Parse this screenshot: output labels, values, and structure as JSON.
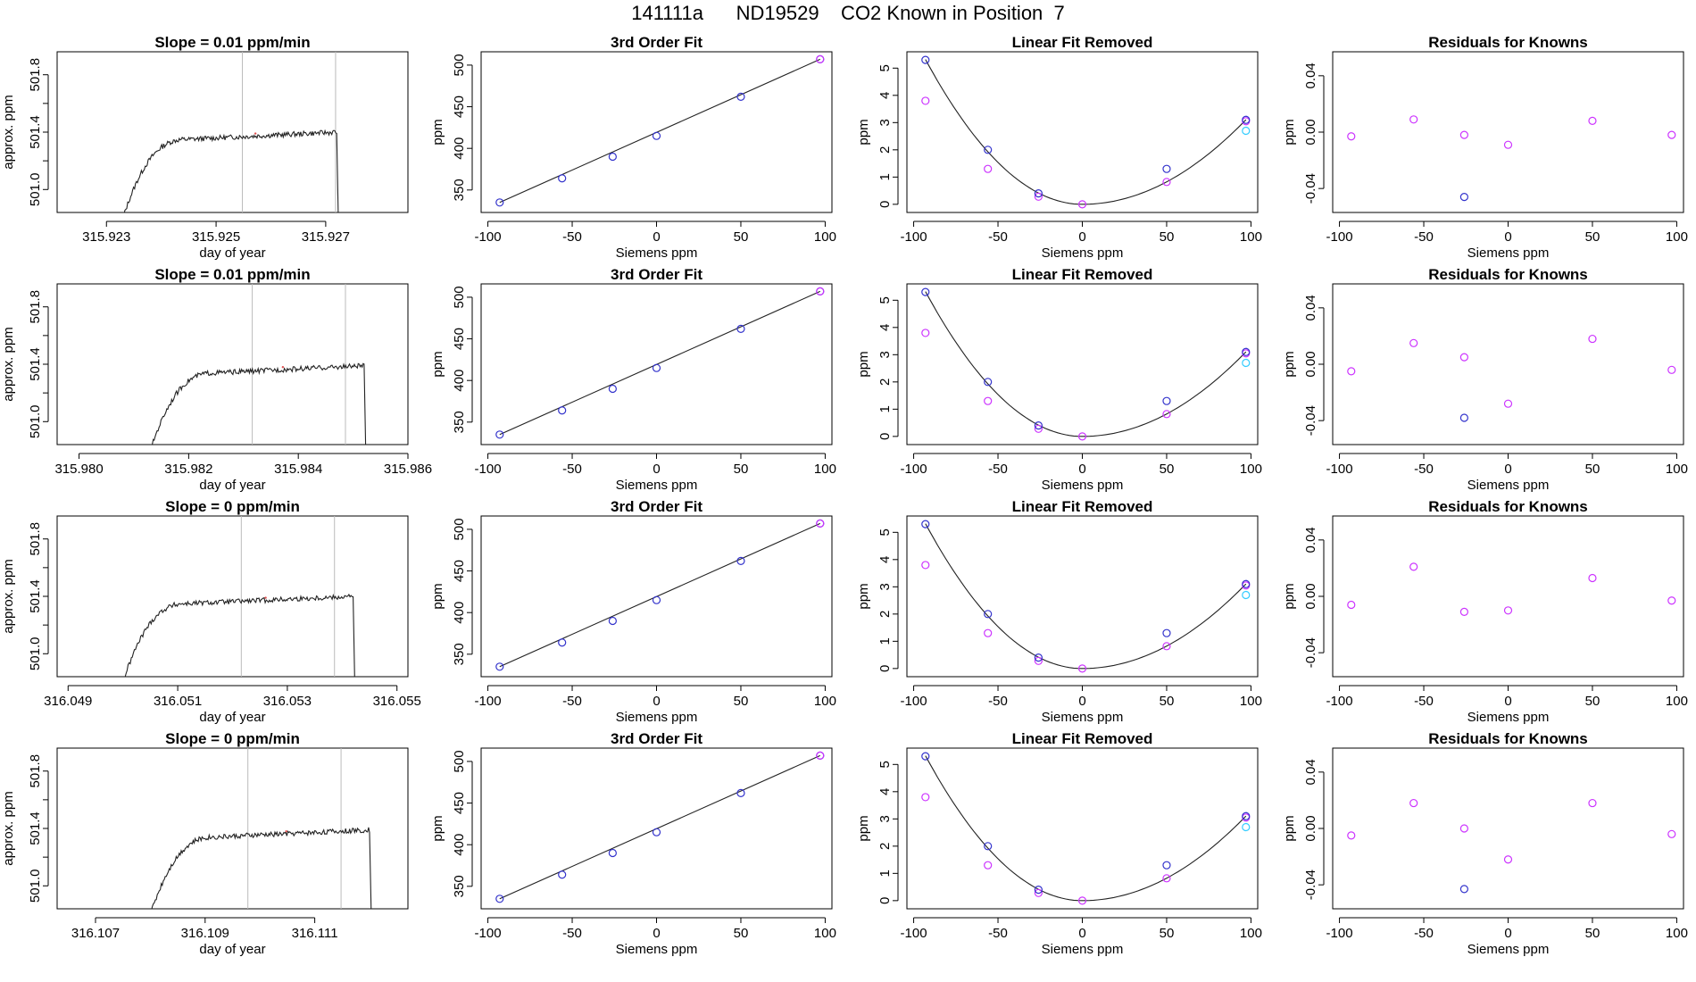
{
  "figure": {
    "title": "141111a      ND19529    CO2 Known in Position  7"
  },
  "colors": {
    "ink": "#000000",
    "magenta": "#cc33ff",
    "blue": "#3333cc",
    "cyan": "#33ccff",
    "guide": "#bbbbbb"
  },
  "chart_data": [
    {
      "type": "line",
      "row": 0,
      "panel": "timeseries",
      "title": "Slope =  0.01  ppm/min",
      "xlabel": "day of year",
      "ylabel": "approx. ppm",
      "xlim": [
        315.9221,
        315.9285
      ],
      "ylim": [
        500.84,
        501.96
      ],
      "xticks": [
        "315.923",
        "315.925",
        "315.927"
      ],
      "yticks": [
        "501.0",
        "501.4",
        "501.8"
      ],
      "trace": {
        "start": 315.9233,
        "rise_end": 315.9245,
        "end": 315.9272,
        "baseline": 500.8,
        "plateau": 501.37
      },
      "vlines": [
        315.92548,
        315.92718
      ]
    },
    {
      "type": "scatter",
      "row": 0,
      "panel": "fit",
      "title": "3rd Order Fit",
      "xlabel": "Siemens ppm",
      "ylabel": "ppm",
      "xlim": [
        -104,
        104
      ],
      "ylim": [
        323,
        516
      ],
      "xticks": [
        "-100",
        "-50",
        "0",
        "50",
        "100"
      ],
      "yticks": [
        "350",
        "400",
        "450",
        "500"
      ],
      "points": [
        [
          -93,
          335
        ],
        [
          -56,
          364
        ],
        [
          -26,
          390
        ],
        [
          0,
          415
        ],
        [
          50,
          462
        ],
        [
          97,
          507
        ]
      ]
    },
    {
      "type": "scatter",
      "row": 0,
      "panel": "linear-removed",
      "title": "Linear Fit Removed",
      "xlabel": "Siemens ppm",
      "ylabel": "ppm",
      "xlim": [
        -104,
        104
      ],
      "ylim": [
        -0.3,
        5.6
      ],
      "xticks": [
        "-100",
        "-50",
        "0",
        "50",
        "100"
      ],
      "yticks": [
        "0",
        "1",
        "2",
        "3",
        "4",
        "5"
      ],
      "points_blue": [
        [
          -93,
          5.3
        ],
        [
          -56,
          2.0
        ],
        [
          -26,
          0.4
        ],
        [
          50,
          1.3
        ],
        [
          97,
          3.1
        ]
      ],
      "points_magenta": [
        [
          -93,
          3.8
        ],
        [
          -56,
          1.3
        ],
        [
          -26,
          0.28
        ],
        [
          0,
          0.0
        ],
        [
          50,
          0.82
        ],
        [
          97,
          3.05
        ]
      ],
      "points_cyan": [
        [
          97,
          2.7
        ]
      ]
    },
    {
      "type": "scatter",
      "row": 0,
      "panel": "residuals",
      "title": "Residuals for Knowns",
      "xlabel": "Siemens ppm",
      "ylabel": "ppm",
      "xlim": [
        -104,
        104
      ],
      "ylim": [
        -0.057,
        0.057
      ],
      "xticks": [
        "-100",
        "-50",
        "0",
        "50",
        "100"
      ],
      "yticks": [
        "-0.04",
        "0.00",
        "0.04"
      ],
      "points_magenta": [
        [
          -93,
          -0.003
        ],
        [
          -56,
          0.009
        ],
        [
          -26,
          -0.002
        ],
        [
          0,
          -0.009
        ],
        [
          50,
          0.008
        ],
        [
          97,
          -0.002
        ]
      ],
      "points_blue": [
        [
          -26,
          -0.046
        ]
      ]
    },
    {
      "type": "line",
      "row": 1,
      "panel": "timeseries",
      "title": "Slope =  0.01  ppm/min",
      "xlabel": "day of year",
      "ylabel": "approx. ppm",
      "xlim": [
        315.9796,
        315.986
      ],
      "ylim": [
        500.84,
        501.96
      ],
      "xticks": [
        "315.980",
        "315.982",
        "315.984",
        "315.986"
      ],
      "yticks": [
        "501.0",
        "501.4",
        "501.8"
      ],
      "trace": {
        "start": 315.9813,
        "rise_end": 315.9825,
        "end": 315.9852,
        "baseline": 500.8,
        "plateau": 501.36
      },
      "vlines": [
        315.98316,
        315.98486
      ]
    },
    {
      "type": "scatter",
      "row": 1,
      "panel": "fit",
      "title": "3rd Order Fit",
      "xlabel": "Siemens ppm",
      "ylabel": "ppm",
      "xlim": [
        -104,
        104
      ],
      "ylim": [
        323,
        516
      ],
      "xticks": [
        "-100",
        "-50",
        "0",
        "50",
        "100"
      ],
      "yticks": [
        "350",
        "400",
        "450",
        "500"
      ],
      "points": [
        [
          -93,
          335
        ],
        [
          -56,
          364
        ],
        [
          -26,
          390
        ],
        [
          0,
          415
        ],
        [
          50,
          462
        ],
        [
          97,
          507
        ]
      ]
    },
    {
      "type": "scatter",
      "row": 1,
      "panel": "linear-removed",
      "title": "Linear Fit Removed",
      "xlabel": "Siemens ppm",
      "ylabel": "ppm",
      "xlim": [
        -104,
        104
      ],
      "ylim": [
        -0.3,
        5.6
      ],
      "xticks": [
        "-100",
        "-50",
        "0",
        "50",
        "100"
      ],
      "yticks": [
        "0",
        "1",
        "2",
        "3",
        "4",
        "5"
      ],
      "points_blue": [
        [
          -93,
          5.3
        ],
        [
          -56,
          2.0
        ],
        [
          -26,
          0.4
        ],
        [
          50,
          1.3
        ],
        [
          97,
          3.1
        ]
      ],
      "points_magenta": [
        [
          -93,
          3.8
        ],
        [
          -56,
          1.3
        ],
        [
          -26,
          0.28
        ],
        [
          0,
          0.0
        ],
        [
          50,
          0.82
        ],
        [
          97,
          3.05
        ]
      ],
      "points_cyan": [
        [
          97,
          2.7
        ]
      ]
    },
    {
      "type": "scatter",
      "row": 1,
      "panel": "residuals",
      "title": "Residuals for Knowns",
      "xlabel": "Siemens ppm",
      "ylabel": "ppm",
      "xlim": [
        -104,
        104
      ],
      "ylim": [
        -0.057,
        0.057
      ],
      "xticks": [
        "-100",
        "-50",
        "0",
        "50",
        "100"
      ],
      "yticks": [
        "-0.04",
        "0.00",
        "0.04"
      ],
      "points_magenta": [
        [
          -93,
          -0.005
        ],
        [
          -56,
          0.015
        ],
        [
          -26,
          0.005
        ],
        [
          0,
          -0.028
        ],
        [
          50,
          0.018
        ],
        [
          97,
          -0.004
        ]
      ],
      "points_blue": [
        [
          -26,
          -0.038
        ]
      ]
    },
    {
      "type": "line",
      "row": 2,
      "panel": "timeseries",
      "title": "Slope =  0  ppm/min",
      "xlabel": "day of year",
      "ylabel": "approx. ppm",
      "xlim": [
        316.0488,
        316.0552
      ],
      "ylim": [
        500.84,
        501.96
      ],
      "xticks": [
        "316.049",
        "316.051",
        "316.053",
        "316.055"
      ],
      "yticks": [
        "501.0",
        "501.4",
        "501.8"
      ],
      "trace": {
        "start": 316.05,
        "rise_end": 316.0512,
        "end": 316.0542,
        "baseline": 500.8,
        "plateau": 501.37
      },
      "vlines": [
        316.05216,
        316.05386
      ]
    },
    {
      "type": "scatter",
      "row": 2,
      "panel": "fit",
      "title": "3rd Order Fit",
      "xlabel": "Siemens ppm",
      "ylabel": "ppm",
      "xlim": [
        -104,
        104
      ],
      "ylim": [
        323,
        516
      ],
      "xticks": [
        "-100",
        "-50",
        "0",
        "50",
        "100"
      ],
      "yticks": [
        "350",
        "400",
        "450",
        "500"
      ],
      "points": [
        [
          -93,
          335
        ],
        [
          -56,
          364
        ],
        [
          -26,
          390
        ],
        [
          0,
          415
        ],
        [
          50,
          462
        ],
        [
          97,
          507
        ]
      ]
    },
    {
      "type": "scatter",
      "row": 2,
      "panel": "linear-removed",
      "title": "Linear Fit Removed",
      "xlabel": "Siemens ppm",
      "ylabel": "ppm",
      "xlim": [
        -104,
        104
      ],
      "ylim": [
        -0.3,
        5.6
      ],
      "xticks": [
        "-100",
        "-50",
        "0",
        "50",
        "100"
      ],
      "yticks": [
        "0",
        "1",
        "2",
        "3",
        "4",
        "5"
      ],
      "points_blue": [
        [
          -93,
          5.3
        ],
        [
          -56,
          2.0
        ],
        [
          -26,
          0.4
        ],
        [
          50,
          1.3
        ],
        [
          97,
          3.1
        ]
      ],
      "points_magenta": [
        [
          -93,
          3.8
        ],
        [
          -56,
          1.3
        ],
        [
          -26,
          0.28
        ],
        [
          0,
          0.0
        ],
        [
          50,
          0.82
        ],
        [
          97,
          3.05
        ]
      ],
      "points_cyan": [
        [
          97,
          2.7
        ]
      ]
    },
    {
      "type": "scatter",
      "row": 2,
      "panel": "residuals",
      "title": "Residuals for Knowns",
      "xlabel": "Siemens ppm",
      "ylabel": "ppm",
      "xlim": [
        -104,
        104
      ],
      "ylim": [
        -0.057,
        0.057
      ],
      "xticks": [
        "-100",
        "-50",
        "0",
        "50",
        "100"
      ],
      "yticks": [
        "-0.04",
        "0.00",
        "0.04"
      ],
      "points_magenta": [
        [
          -93,
          -0.006
        ],
        [
          -56,
          0.021
        ],
        [
          -26,
          -0.011
        ],
        [
          0,
          -0.01
        ],
        [
          50,
          0.013
        ],
        [
          97,
          -0.003
        ]
      ],
      "points_blue": []
    },
    {
      "type": "line",
      "row": 3,
      "panel": "timeseries",
      "title": "Slope =  0  ppm/min",
      "xlabel": "day of year",
      "ylabel": "approx. ppm",
      "xlim": [
        316.1063,
        316.1127
      ],
      "ylim": [
        500.84,
        501.96
      ],
      "xticks": [
        "316.107",
        "316.109",
        "316.111"
      ],
      "yticks": [
        "501.0",
        "501.4",
        "501.8"
      ],
      "trace": {
        "start": 316.108,
        "rise_end": 316.1092,
        "end": 316.112,
        "baseline": 500.8,
        "plateau": 501.36
      },
      "vlines": [
        316.10978,
        316.11148
      ]
    },
    {
      "type": "scatter",
      "row": 3,
      "panel": "fit",
      "title": "3rd Order Fit",
      "xlabel": "Siemens ppm",
      "ylabel": "ppm",
      "xlim": [
        -104,
        104
      ],
      "ylim": [
        323,
        516
      ],
      "xticks": [
        "-100",
        "-50",
        "0",
        "50",
        "100"
      ],
      "yticks": [
        "350",
        "400",
        "450",
        "500"
      ],
      "points": [
        [
          -93,
          335
        ],
        [
          -56,
          364
        ],
        [
          -26,
          390
        ],
        [
          0,
          415
        ],
        [
          50,
          462
        ],
        [
          97,
          507
        ]
      ]
    },
    {
      "type": "scatter",
      "row": 3,
      "panel": "linear-removed",
      "title": "Linear Fit Removed",
      "xlabel": "Siemens ppm",
      "ylabel": "ppm",
      "xlim": [
        -104,
        104
      ],
      "ylim": [
        -0.3,
        5.6
      ],
      "xticks": [
        "-100",
        "-50",
        "0",
        "50",
        "100"
      ],
      "yticks": [
        "0",
        "1",
        "2",
        "3",
        "4",
        "5"
      ],
      "points_blue": [
        [
          -93,
          5.3
        ],
        [
          -56,
          2.0
        ],
        [
          -26,
          0.4
        ],
        [
          50,
          1.3
        ],
        [
          97,
          3.1
        ]
      ],
      "points_magenta": [
        [
          -93,
          3.8
        ],
        [
          -56,
          1.3
        ],
        [
          -26,
          0.28
        ],
        [
          0,
          0.0
        ],
        [
          50,
          0.82
        ],
        [
          97,
          3.05
        ]
      ],
      "points_cyan": [
        [
          97,
          2.7
        ]
      ]
    },
    {
      "type": "scatter",
      "row": 3,
      "panel": "residuals",
      "title": "Residuals for Knowns",
      "xlabel": "Siemens ppm",
      "ylabel": "ppm",
      "xlim": [
        -104,
        104
      ],
      "ylim": [
        -0.057,
        0.057
      ],
      "xticks": [
        "-100",
        "-50",
        "0",
        "50",
        "100"
      ],
      "yticks": [
        "-0.04",
        "0.00",
        "0.04"
      ],
      "points_magenta": [
        [
          -93,
          -0.005
        ],
        [
          -56,
          0.018
        ],
        [
          -26,
          0.0
        ],
        [
          0,
          -0.022
        ],
        [
          50,
          0.018
        ],
        [
          97,
          -0.004
        ]
      ],
      "points_blue": [
        [
          -26,
          -0.043
        ]
      ]
    }
  ]
}
